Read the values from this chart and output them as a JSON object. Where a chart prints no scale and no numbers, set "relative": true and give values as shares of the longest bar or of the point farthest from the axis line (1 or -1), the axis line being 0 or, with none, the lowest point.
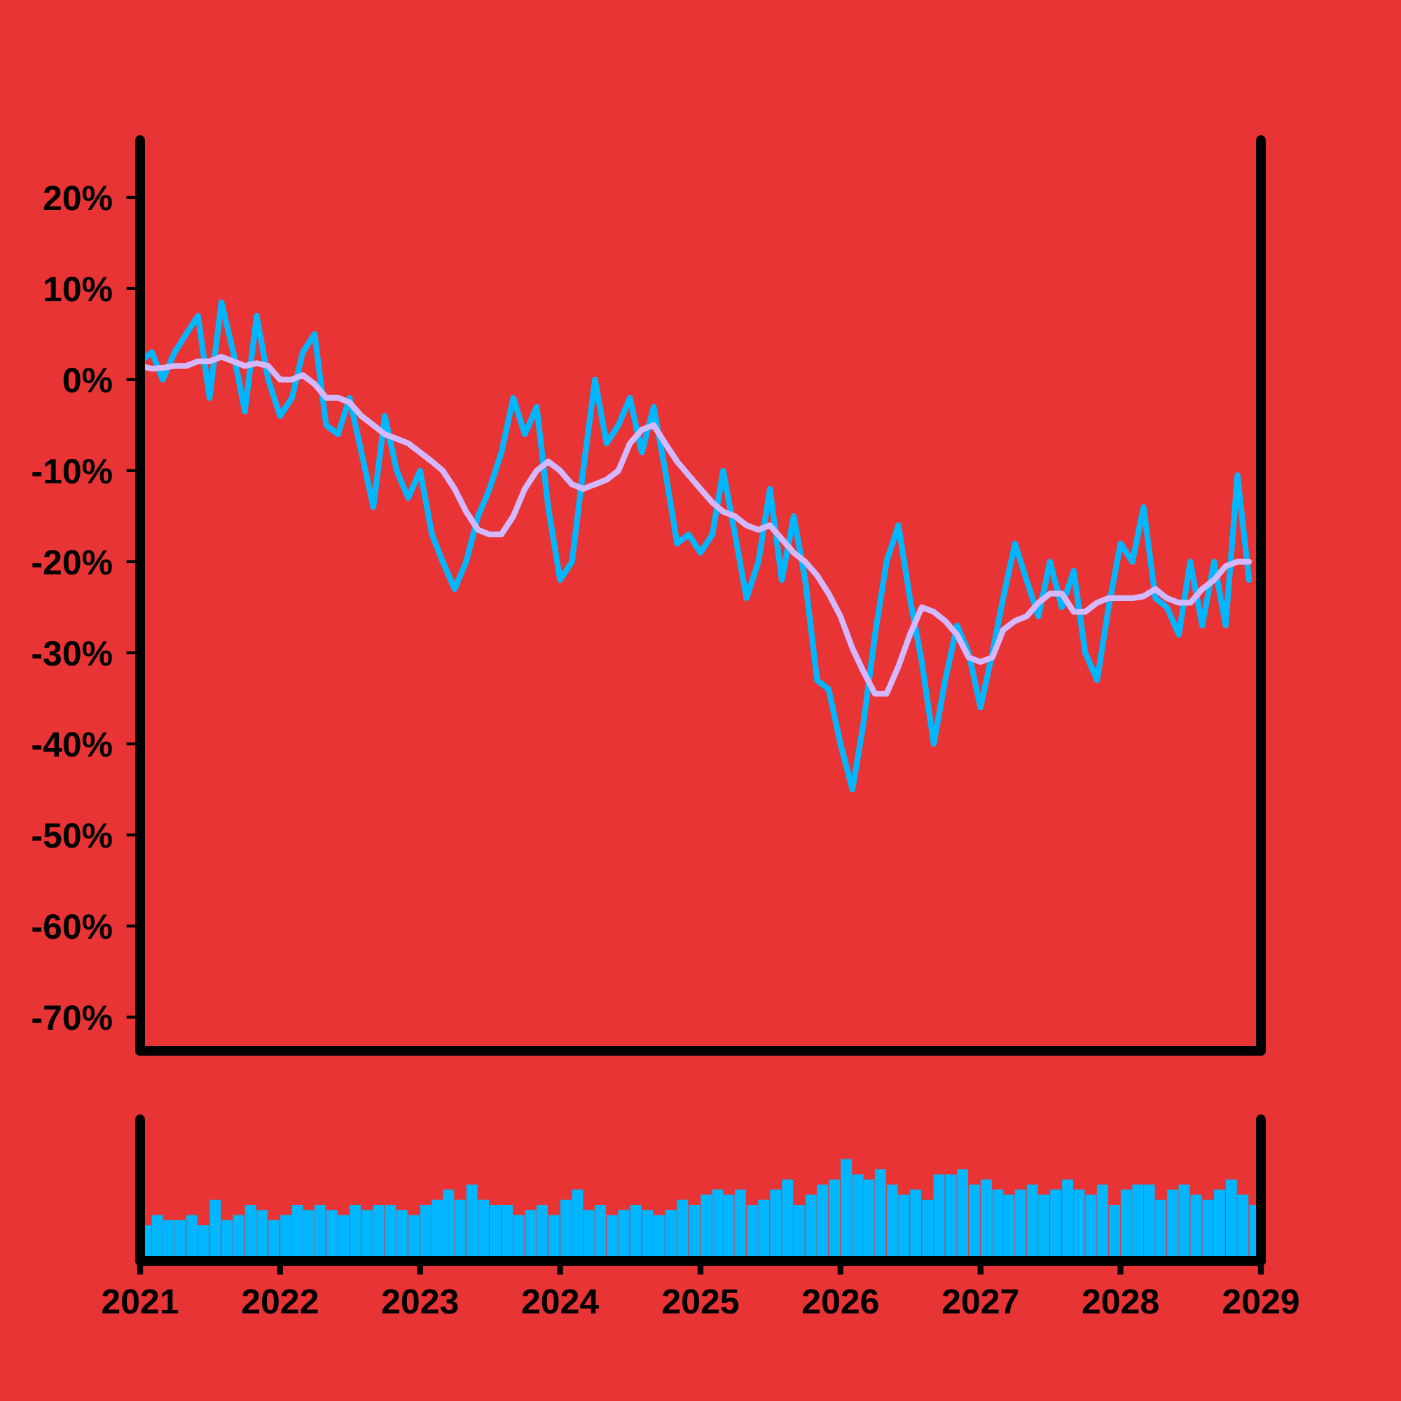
{
  "chart_data": [
    {
      "type": "line",
      "x": [
        "2021-01",
        "2021-02",
        "2021-03",
        "2021-04",
        "2021-05",
        "2021-06",
        "2021-07",
        "2021-08",
        "2021-09",
        "2021-10",
        "2021-11",
        "2021-12",
        "2022-01",
        "2022-02",
        "2022-03",
        "2022-04",
        "2022-05",
        "2022-06",
        "2022-07",
        "2022-08",
        "2022-09",
        "2022-10",
        "2022-11",
        "2022-12",
        "2023-01",
        "2023-02",
        "2023-03",
        "2023-04",
        "2023-05",
        "2023-06",
        "2023-07",
        "2023-08",
        "2023-09",
        "2023-10",
        "2023-11",
        "2023-12",
        "2024-01",
        "2024-02",
        "2024-03",
        "2024-04",
        "2024-05",
        "2024-06",
        "2024-07",
        "2024-08",
        "2024-09",
        "2024-10",
        "2024-11",
        "2024-12",
        "2025-01",
        "2025-02",
        "2025-03",
        "2025-04",
        "2025-05",
        "2025-06",
        "2025-07",
        "2025-08",
        "2025-09",
        "2025-10",
        "2025-11",
        "2025-12",
        "2026-01",
        "2026-02",
        "2026-03",
        "2026-04",
        "2026-05",
        "2026-06",
        "2026-07",
        "2026-08",
        "2026-09",
        "2026-10",
        "2026-11",
        "2026-12",
        "2027-01",
        "2027-02",
        "2027-03",
        "2027-04",
        "2027-05",
        "2027-06",
        "2027-07",
        "2027-08",
        "2027-09",
        "2027-10",
        "2027-11",
        "2027-12",
        "2028-01",
        "2028-02",
        "2028-03",
        "2028-04",
        "2028-05",
        "2028-06",
        "2028-07",
        "2028-08",
        "2028-09",
        "2028-10",
        "2028-11",
        "2028-12"
      ],
      "series": [
        {
          "color": "#00b7ff",
          "values": [
            2,
            3,
            0,
            3,
            5,
            7,
            -2,
            8.5,
            3,
            -3.5,
            7,
            0,
            -4,
            -2,
            3,
            5,
            -5,
            -6,
            -2,
            -8,
            -14,
            -4,
            -10,
            -13,
            -10,
            -17,
            -20,
            -23,
            -20,
            -15,
            -12,
            -8,
            -2,
            -6,
            -3,
            -14,
            -22,
            -20,
            -10,
            0,
            -7,
            -5,
            -2,
            -8,
            -3,
            -10,
            -18,
            -17,
            -19,
            -17,
            -10,
            -17,
            -24,
            -20,
            -12,
            -22,
            -15,
            -22,
            -33,
            -34,
            -40,
            -45,
            -38,
            -28,
            -20,
            -16,
            -24,
            -31,
            -40,
            -33,
            -27,
            -30,
            -36,
            -30,
            -24,
            -18,
            -22,
            -26,
            -20,
            -25,
            -21,
            -30,
            -33,
            -25,
            -18,
            -20,
            -14,
            -24,
            -25,
            -28,
            -20,
            -27,
            -20,
            -27,
            -10.5,
            -22
          ]
        },
        {
          "color": "#d4b8ff",
          "values": [
            1.5,
            1.2,
            1.3,
            1.5,
            1.5,
            2,
            2,
            2.5,
            2,
            1.5,
            1.8,
            1.5,
            0,
            0,
            0.5,
            -0.5,
            -2,
            -2,
            -2.5,
            -4,
            -5,
            -6,
            -6.5,
            -7,
            -8,
            -9,
            -10,
            -12,
            -14.5,
            -16.5,
            -17,
            -17,
            -15,
            -12,
            -10,
            -9,
            -10,
            -11.5,
            -12,
            -11.5,
            -11,
            -10,
            -7,
            -5.5,
            -5,
            -7,
            -9,
            -10.5,
            -12,
            -13.5,
            -14.5,
            -15,
            -16,
            -16.5,
            -16,
            -17.5,
            -19,
            -20,
            -21.5,
            -23.5,
            -26,
            -29.5,
            -32,
            -34.5,
            -34.5,
            -31.5,
            -28,
            -25,
            -25.5,
            -26.5,
            -28,
            -30.5,
            -31,
            -30.5,
            -27.5,
            -26.5,
            -26,
            -24.5,
            -23.5,
            -23.5,
            -25.5,
            -25.5,
            -24.5,
            -24,
            -24,
            -24,
            -23.8,
            -23,
            -24,
            -24.5,
            -24.5,
            -23,
            -22,
            -20.5,
            -20,
            -20
          ]
        }
      ],
      "xlim": [
        "2021-01-01",
        "2029-01-01"
      ],
      "ylim": [
        -73.7,
        26.3
      ],
      "yticks": [
        {
          "value": 20,
          "label": "20%"
        },
        {
          "value": 10,
          "label": "10%"
        },
        {
          "value": 0,
          "label": "0%"
        },
        {
          "value": -10,
          "label": "-10%"
        },
        {
          "value": -20,
          "label": "-20%"
        },
        {
          "value": -30,
          "label": "-30%"
        },
        {
          "value": -40,
          "label": "-40%"
        },
        {
          "value": -50,
          "label": "-50%"
        },
        {
          "value": -60,
          "label": "-60%"
        },
        {
          "value": -70,
          "label": "-70%"
        }
      ],
      "tick_labels": "y"
    },
    {
      "type": "bar",
      "relative": true,
      "color": "#00b7ff",
      "x": [
        "2021-01-16",
        "2021-02-15",
        "2021-03-16",
        "2021-04-15",
        "2021-05-16",
        "2021-06-15",
        "2021-07-16",
        "2021-08-16",
        "2021-09-15",
        "2021-10-16",
        "2021-11-15",
        "2021-12-16",
        "2022-01-16",
        "2022-02-15",
        "2022-03-16",
        "2022-04-15",
        "2022-05-16",
        "2022-06-15",
        "2022-07-16",
        "2022-08-16",
        "2022-09-15",
        "2022-10-16",
        "2022-11-15",
        "2022-12-16",
        "2023-01-16",
        "2023-02-15",
        "2023-03-16",
        "2023-04-15",
        "2023-05-16",
        "2023-06-15",
        "2023-07-16",
        "2023-08-16",
        "2023-09-15",
        "2023-10-16",
        "2023-11-15",
        "2023-12-16",
        "2024-01-16",
        "2024-02-15",
        "2024-03-16",
        "2024-04-15",
        "2024-05-16",
        "2024-06-15",
        "2024-07-16",
        "2024-08-16",
        "2024-09-15",
        "2024-10-16",
        "2024-11-15",
        "2024-12-16",
        "2025-01-16",
        "2025-02-15",
        "2025-03-16",
        "2025-04-15",
        "2025-05-16",
        "2025-06-15",
        "2025-07-16",
        "2025-08-16",
        "2025-09-15",
        "2025-10-16",
        "2025-11-15",
        "2025-12-16",
        "2026-01-16",
        "2026-02-15",
        "2026-03-16",
        "2026-04-15",
        "2026-05-16",
        "2026-06-15",
        "2026-07-16",
        "2026-08-16",
        "2026-09-15",
        "2026-10-16",
        "2026-11-15",
        "2026-12-16",
        "2027-01-16",
        "2027-02-15",
        "2027-03-16",
        "2027-04-15",
        "2027-05-16",
        "2027-06-15",
        "2027-07-16",
        "2027-08-16",
        "2027-09-15",
        "2027-10-16",
        "2027-11-15",
        "2027-12-16",
        "2028-01-16",
        "2028-02-15",
        "2028-03-16",
        "2028-04-15",
        "2028-05-16",
        "2028-06-15",
        "2028-07-16",
        "2028-08-16",
        "2028-09-15",
        "2028-10-16",
        "2028-11-15",
        "2028-12-16"
      ],
      "values": [
        0.35,
        0.45,
        0.4,
        0.4,
        0.45,
        0.35,
        0.6,
        0.4,
        0.45,
        0.55,
        0.5,
        0.4,
        0.45,
        0.55,
        0.5,
        0.55,
        0.5,
        0.45,
        0.55,
        0.5,
        0.55,
        0.55,
        0.5,
        0.45,
        0.55,
        0.6,
        0.7,
        0.6,
        0.75,
        0.6,
        0.55,
        0.55,
        0.45,
        0.5,
        0.55,
        0.45,
        0.6,
        0.7,
        0.5,
        0.55,
        0.45,
        0.5,
        0.55,
        0.5,
        0.45,
        0.5,
        0.6,
        0.55,
        0.65,
        0.7,
        0.65,
        0.7,
        0.55,
        0.6,
        0.7,
        0.8,
        0.55,
        0.65,
        0.75,
        0.8,
        1,
        0.85,
        0.8,
        0.9,
        0.75,
        0.65,
        0.7,
        0.6,
        0.85,
        0.85,
        0.9,
        0.75,
        0.8,
        0.7,
        0.65,
        0.7,
        0.75,
        0.65,
        0.7,
        0.8,
        0.7,
        0.65,
        0.75,
        0.55,
        0.7,
        0.75,
        0.75,
        0.6,
        0.7,
        0.75,
        0.65,
        0.6,
        0.7,
        0.8,
        0.65,
        0.55
      ],
      "xlim": [
        "2021-01-01",
        "2029-01-01"
      ],
      "xticks": [
        {
          "value": "2021-01-01",
          "label": "2021"
        },
        {
          "value": "2022-01-01",
          "label": "2022"
        },
        {
          "value": "2023-01-01",
          "label": "2023"
        },
        {
          "value": "2024-01-01",
          "label": "2024"
        },
        {
          "value": "2025-01-01",
          "label": "2025"
        },
        {
          "value": "2026-01-01",
          "label": "2026"
        },
        {
          "value": "2027-01-01",
          "label": "2027"
        },
        {
          "value": "2028-01-01",
          "label": "2028"
        },
        {
          "value": "2029-01-01",
          "label": "2029"
        }
      ],
      "tick_labels": "x"
    }
  ]
}
